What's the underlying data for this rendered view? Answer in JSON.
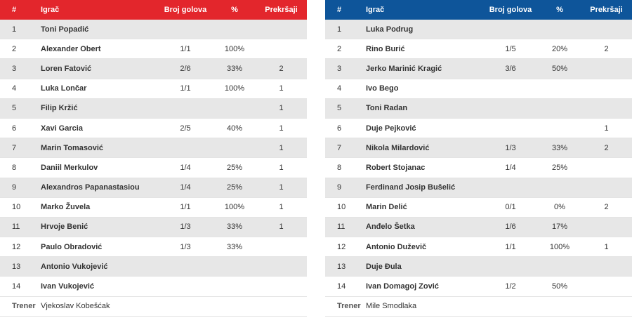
{
  "left_table": {
    "accent": "#e3262c",
    "headers": {
      "num": "#",
      "name": "Igrač",
      "goals": "Broj golova",
      "pct": "%",
      "fouls": "Prekršaji"
    },
    "rows": [
      {
        "num": "1",
        "name": "Toni Popadić",
        "goals": "",
        "pct": "",
        "fouls": ""
      },
      {
        "num": "2",
        "name": "Alexander Obert",
        "goals": "1/1",
        "pct": "100%",
        "fouls": ""
      },
      {
        "num": "3",
        "name": "Loren Fatović",
        "goals": "2/6",
        "pct": "33%",
        "fouls": "2"
      },
      {
        "num": "4",
        "name": "Luka Lončar",
        "goals": "1/1",
        "pct": "100%",
        "fouls": "1"
      },
      {
        "num": "5",
        "name": "Filip Kržić",
        "goals": "",
        "pct": "",
        "fouls": "1"
      },
      {
        "num": "6",
        "name": "Xavi Garcia",
        "goals": "2/5",
        "pct": "40%",
        "fouls": "1"
      },
      {
        "num": "7",
        "name": "Marin Tomasović",
        "goals": "",
        "pct": "",
        "fouls": "1"
      },
      {
        "num": "8",
        "name": "Daniil Merkulov",
        "goals": "1/4",
        "pct": "25%",
        "fouls": "1"
      },
      {
        "num": "9",
        "name": "Alexandros Papanastasiou",
        "goals": "1/4",
        "pct": "25%",
        "fouls": "1"
      },
      {
        "num": "10",
        "name": "Marko Žuvela",
        "goals": "1/1",
        "pct": "100%",
        "fouls": "1"
      },
      {
        "num": "11",
        "name": "Hrvoje Benić",
        "goals": "1/3",
        "pct": "33%",
        "fouls": "1"
      },
      {
        "num": "12",
        "name": "Paulo Obradović",
        "goals": "1/3",
        "pct": "33%",
        "fouls": ""
      },
      {
        "num": "13",
        "name": "Antonio Vukojević",
        "goals": "",
        "pct": "",
        "fouls": ""
      },
      {
        "num": "14",
        "name": "Ivan Vukojević",
        "goals": "",
        "pct": "",
        "fouls": ""
      }
    ],
    "coach_label": "Trener",
    "coach_name": "Vjekoslav Kobešćak"
  },
  "right_table": {
    "accent": "#0e559a",
    "headers": {
      "num": "#",
      "name": "Igrač",
      "goals": "Broj golova",
      "pct": "%",
      "fouls": "Prekršaji"
    },
    "rows": [
      {
        "num": "1",
        "name": "Luka Podrug",
        "goals": "",
        "pct": "",
        "fouls": ""
      },
      {
        "num": "2",
        "name": "Rino Burić",
        "goals": "1/5",
        "pct": "20%",
        "fouls": "2"
      },
      {
        "num": "3",
        "name": "Jerko Marinić Kragić",
        "goals": "3/6",
        "pct": "50%",
        "fouls": ""
      },
      {
        "num": "4",
        "name": "Ivo Bego",
        "goals": "",
        "pct": "",
        "fouls": ""
      },
      {
        "num": "5",
        "name": "Toni Radan",
        "goals": "",
        "pct": "",
        "fouls": ""
      },
      {
        "num": "6",
        "name": "Duje Pejković",
        "goals": "",
        "pct": "",
        "fouls": "1"
      },
      {
        "num": "7",
        "name": "Nikola Milardović",
        "goals": "1/3",
        "pct": "33%",
        "fouls": "2"
      },
      {
        "num": "8",
        "name": "Robert Stojanac",
        "goals": "1/4",
        "pct": "25%",
        "fouls": ""
      },
      {
        "num": "9",
        "name": "Ferdinand Josip Bušelić",
        "goals": "",
        "pct": "",
        "fouls": ""
      },
      {
        "num": "10",
        "name": "Marin Delić",
        "goals": "0/1",
        "pct": "0%",
        "fouls": "2"
      },
      {
        "num": "11",
        "name": "Anđelo Šetka",
        "goals": "1/6",
        "pct": "17%",
        "fouls": ""
      },
      {
        "num": "12",
        "name": "Antonio Duževič",
        "goals": "1/1",
        "pct": "100%",
        "fouls": "1"
      },
      {
        "num": "13",
        "name": "Duje Đula",
        "goals": "",
        "pct": "",
        "fouls": ""
      },
      {
        "num": "14",
        "name": "Ivan Domagoj Zović",
        "goals": "1/2",
        "pct": "50%",
        "fouls": ""
      }
    ],
    "coach_label": "Trener",
    "coach_name": "Mile Smodlaka"
  }
}
